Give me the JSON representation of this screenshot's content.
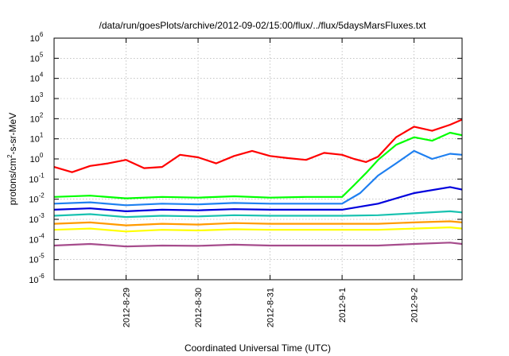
{
  "chart_data": {
    "type": "line",
    "title": "/data/run/goesPlots/archive/2012-09-02/15:00/flux/../flux/5daysMarsFluxes.txt",
    "xlabel": "Coordinated Universal Time (UTC)",
    "ylabel_parts": {
      "before": "protons/cm",
      "sup": "2",
      "after": "-s-sr-MeV"
    },
    "ylog": true,
    "xlim": [
      "2012-08-28T00:00",
      "2012-09-02T16:00"
    ],
    "ylim": [
      1e-06,
      1000000.0
    ],
    "grid": true,
    "xticks": [
      {
        "value": "2012-08-29T00:00",
        "label": "2012-8-29"
      },
      {
        "value": "2012-08-30T00:00",
        "label": "2012-8-30"
      },
      {
        "value": "2012-08-31T00:00",
        "label": "2012-8-31"
      },
      {
        "value": "2012-09-01T00:00",
        "label": "2012-9-1"
      },
      {
        "value": "2012-09-02T00:00",
        "label": "2012-9-2"
      }
    ],
    "yticks": [
      {
        "value": 1e-06,
        "base": "10",
        "exp": "-6"
      },
      {
        "value": 1e-05,
        "base": "10",
        "exp": "-5"
      },
      {
        "value": 0.0001,
        "base": "10",
        "exp": "-4"
      },
      {
        "value": 0.001,
        "base": "10",
        "exp": "-3"
      },
      {
        "value": 0.01,
        "base": "10",
        "exp": "-2"
      },
      {
        "value": 0.1,
        "base": "10",
        "exp": "-1"
      },
      {
        "value": 1,
        "base": "10",
        "exp": "0"
      },
      {
        "value": 10,
        "base": "10",
        "exp": "1"
      },
      {
        "value": 100,
        "base": "10",
        "exp": "2"
      },
      {
        "value": 1000,
        "base": "10",
        "exp": "3"
      },
      {
        "value": 10000,
        "base": "10",
        "exp": "4"
      },
      {
        "value": 100000,
        "base": "10",
        "exp": "5"
      },
      {
        "value": 1000000,
        "base": "10",
        "exp": "6"
      }
    ],
    "series": [
      {
        "color": "#ff0000",
        "x": [
          "2012-08-28T00:00",
          "2012-08-28T06:00",
          "2012-08-28T12:00",
          "2012-08-28T18:00",
          "2012-08-29T00:00",
          "2012-08-29T06:00",
          "2012-08-29T12:00",
          "2012-08-29T18:00",
          "2012-08-30T00:00",
          "2012-08-30T06:00",
          "2012-08-30T12:00",
          "2012-08-30T18:00",
          "2012-08-31T00:00",
          "2012-08-31T06:00",
          "2012-08-31T12:00",
          "2012-08-31T18:00",
          "2012-09-01T00:00",
          "2012-09-01T04:00",
          "2012-09-01T08:00",
          "2012-09-01T12:00",
          "2012-09-01T18:00",
          "2012-09-02T00:00",
          "2012-09-02T06:00",
          "2012-09-02T12:00",
          "2012-09-02T16:00"
        ],
        "values": [
          0.4,
          0.22,
          0.45,
          0.6,
          0.9,
          0.35,
          0.4,
          1.6,
          1.2,
          0.6,
          1.4,
          2.5,
          1.4,
          1.1,
          0.9,
          2.0,
          1.6,
          1.0,
          0.7,
          1.3,
          12,
          40,
          25,
          50,
          90
        ]
      },
      {
        "color": "#00ff00",
        "x": [
          "2012-08-28T00:00",
          "2012-08-28T12:00",
          "2012-08-29T00:00",
          "2012-08-29T12:00",
          "2012-08-30T00:00",
          "2012-08-30T12:00",
          "2012-08-31T00:00",
          "2012-08-31T12:00",
          "2012-09-01T00:00",
          "2012-09-01T04:00",
          "2012-09-01T08:00",
          "2012-09-01T12:00",
          "2012-09-01T18:00",
          "2012-09-02T00:00",
          "2012-09-02T06:00",
          "2012-09-02T12:00",
          "2012-09-02T16:00"
        ],
        "values": [
          0.013,
          0.015,
          0.011,
          0.013,
          0.012,
          0.014,
          0.012,
          0.013,
          0.013,
          0.05,
          0.2,
          0.9,
          5,
          12,
          8,
          20,
          15
        ]
      },
      {
        "color": "#1e7ff0",
        "x": [
          "2012-08-28T00:00",
          "2012-08-28T12:00",
          "2012-08-29T00:00",
          "2012-08-29T12:00",
          "2012-08-30T00:00",
          "2012-08-30T12:00",
          "2012-08-31T00:00",
          "2012-08-31T12:00",
          "2012-09-01T00:00",
          "2012-09-01T06:00",
          "2012-09-01T12:00",
          "2012-09-01T18:00",
          "2012-09-02T00:00",
          "2012-09-02T06:00",
          "2012-09-02T12:00",
          "2012-09-02T16:00"
        ],
        "values": [
          0.006,
          0.007,
          0.005,
          0.006,
          0.0055,
          0.0065,
          0.006,
          0.006,
          0.006,
          0.02,
          0.15,
          0.6,
          2.5,
          1.0,
          1.8,
          1.6
        ]
      },
      {
        "color": "#0000dd",
        "x": [
          "2012-08-28T00:00",
          "2012-08-28T12:00",
          "2012-08-29T00:00",
          "2012-08-29T12:00",
          "2012-08-30T00:00",
          "2012-08-30T12:00",
          "2012-08-31T00:00",
          "2012-08-31T12:00",
          "2012-09-01T00:00",
          "2012-09-01T12:00",
          "2012-09-02T00:00",
          "2012-09-02T12:00",
          "2012-09-02T16:00"
        ],
        "values": [
          0.003,
          0.0035,
          0.0025,
          0.003,
          0.0028,
          0.0032,
          0.003,
          0.003,
          0.003,
          0.006,
          0.02,
          0.04,
          0.03
        ]
      },
      {
        "color": "#19c2b0",
        "x": [
          "2012-08-28T00:00",
          "2012-08-28T12:00",
          "2012-08-29T00:00",
          "2012-08-29T12:00",
          "2012-08-30T00:00",
          "2012-08-30T12:00",
          "2012-08-31T00:00",
          "2012-08-31T12:00",
          "2012-09-01T00:00",
          "2012-09-01T12:00",
          "2012-09-02T00:00",
          "2012-09-02T12:00",
          "2012-09-02T16:00"
        ],
        "values": [
          0.0015,
          0.0018,
          0.0013,
          0.0015,
          0.0014,
          0.0016,
          0.0015,
          0.0015,
          0.0015,
          0.0016,
          0.002,
          0.0025,
          0.0022
        ]
      },
      {
        "color": "#ff9a00",
        "x": [
          "2012-08-28T00:00",
          "2012-08-28T12:00",
          "2012-08-29T00:00",
          "2012-08-29T12:00",
          "2012-08-30T00:00",
          "2012-08-30T12:00",
          "2012-08-31T00:00",
          "2012-08-31T12:00",
          "2012-09-01T00:00",
          "2012-09-01T12:00",
          "2012-09-02T00:00",
          "2012-09-02T12:00",
          "2012-09-02T16:00"
        ],
        "values": [
          0.0006,
          0.0007,
          0.0005,
          0.0006,
          0.00055,
          0.00065,
          0.0006,
          0.0006,
          0.0006,
          0.0006,
          0.0007,
          0.0008,
          0.0007
        ]
      },
      {
        "color": "#ffff00",
        "x": [
          "2012-08-28T00:00",
          "2012-08-28T12:00",
          "2012-08-29T00:00",
          "2012-08-29T12:00",
          "2012-08-30T00:00",
          "2012-08-30T12:00",
          "2012-08-31T00:00",
          "2012-08-31T12:00",
          "2012-09-01T00:00",
          "2012-09-01T12:00",
          "2012-09-02T00:00",
          "2012-09-02T12:00",
          "2012-09-02T16:00"
        ],
        "values": [
          0.0003,
          0.00035,
          0.00025,
          0.0003,
          0.00028,
          0.00032,
          0.0003,
          0.0003,
          0.0003,
          0.0003,
          0.00035,
          0.0004,
          0.00035
        ]
      },
      {
        "color": "#a64c8c",
        "x": [
          "2012-08-28T00:00",
          "2012-08-28T12:00",
          "2012-08-29T00:00",
          "2012-08-29T12:00",
          "2012-08-30T00:00",
          "2012-08-30T12:00",
          "2012-08-31T00:00",
          "2012-08-31T12:00",
          "2012-09-01T00:00",
          "2012-09-01T12:00",
          "2012-09-02T00:00",
          "2012-09-02T12:00",
          "2012-09-02T16:00"
        ],
        "values": [
          5e-05,
          6e-05,
          4.5e-05,
          5e-05,
          4.8e-05,
          5.5e-05,
          5e-05,
          5e-05,
          5e-05,
          5e-05,
          6e-05,
          7e-05,
          6e-05
        ]
      }
    ]
  }
}
